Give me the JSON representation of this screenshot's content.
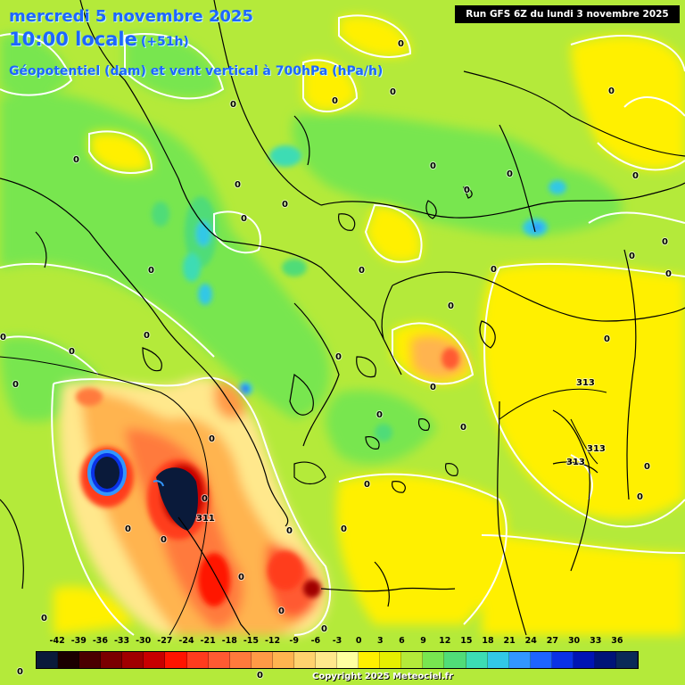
{
  "header": {
    "date_line": "mercredi 5 novembre 2025",
    "time_line": "10:00 locale",
    "forecast_offset": "(+51h)",
    "parameter_line": "Géopotentiel (dam) et vent vertical à 700hPa (hPa/h)"
  },
  "run_info": "Run GFS 6Z du lundi 3 novembre 2025",
  "copyright": "Copyright 2025 Meteociel.fr",
  "legend": {
    "ticks": [
      "-42",
      "-39",
      "-36",
      "-33",
      "-30",
      "-27",
      "-24",
      "-21",
      "-18",
      "-15",
      "-12",
      "-9",
      "-6",
      "-3",
      "0",
      "3",
      "6",
      "9",
      "12",
      "15",
      "18",
      "21",
      "24",
      "27",
      "30",
      "33",
      "36"
    ],
    "colors": [
      "#0a1a3a",
      "#1a0000",
      "#4a0000",
      "#7a0000",
      "#a00000",
      "#c80000",
      "#ff1400",
      "#ff3c1e",
      "#ff5a32",
      "#ff7a3c",
      "#ff9a46",
      "#ffb450",
      "#ffd26e",
      "#ffe88c",
      "#ffffa0",
      "#fff000",
      "#e6ef00",
      "#b4ea3a",
      "#78e650",
      "#50dc78",
      "#3cdcb4",
      "#32c8e6",
      "#3296ff",
      "#1e64ff",
      "#0a32e6",
      "#0014b4",
      "#001478",
      "#0a2a58"
    ]
  },
  "contour_labels": [
    "0",
    "311",
    "313"
  ],
  "colors": {
    "title": "#1e66ff",
    "background_field": "#b4ea3a",
    "contour": "#ffffff",
    "coastline": "#000000"
  }
}
